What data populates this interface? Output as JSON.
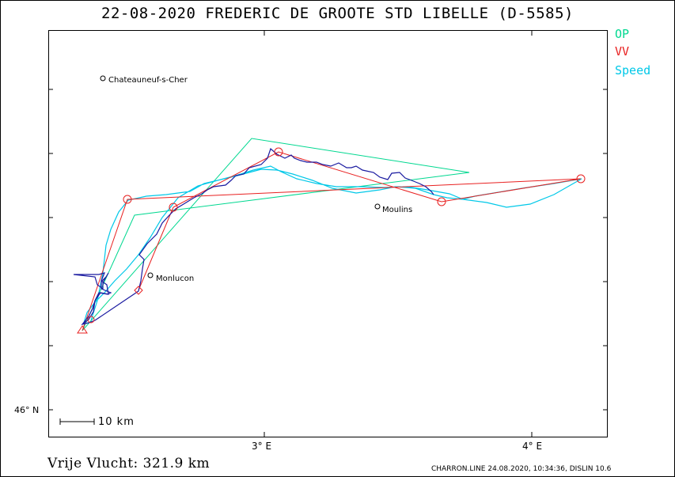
{
  "header": {
    "title": "22-08-2020    FREDERIC DE GROOTE    STD LIBELLE (D-5585)"
  },
  "legend": {
    "op": {
      "label": "OP",
      "color": "#00d890"
    },
    "vv": {
      "label": "VV",
      "color": "#e82020"
    },
    "speed": {
      "label": "Speed",
      "color": "#00c8e8"
    }
  },
  "axes": {
    "lat_label": "46° N",
    "x_labels": [
      "3° E",
      "4° E"
    ]
  },
  "scale": {
    "label": "10 km"
  },
  "towns": [
    {
      "name": "Chateauneuf-s-Cher"
    },
    {
      "name": "Monlucon"
    },
    {
      "name": "Moulins"
    }
  ],
  "footer": {
    "distance": "Vrije Vlucht:  321.9 km",
    "software": "CHARRON.LINE 24.08.2020, 10:34:36, DISLIN 10.6"
  },
  "colors": {
    "track": "#1a1aa0",
    "frame": "#000000"
  }
}
